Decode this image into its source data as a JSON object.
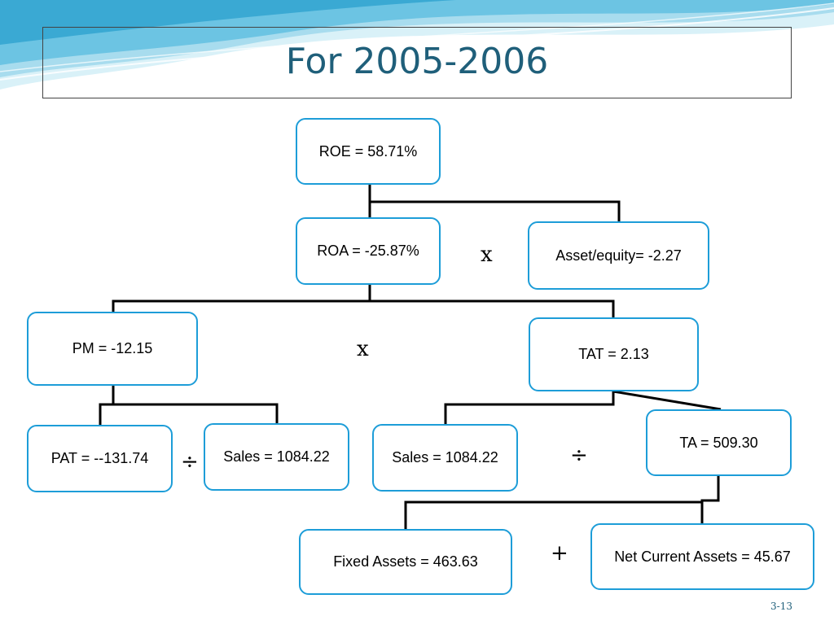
{
  "slide": {
    "title": "For 2005-2006",
    "page_number": "3-13"
  },
  "nodes": {
    "roe": "ROE = 58.71%",
    "roa": "ROA = -25.87%",
    "asset_equity": "Asset/equity= -2.27",
    "pm": "PM =  -12.15",
    "tat": "TAT =  2.13",
    "pat": "PAT = --131.74",
    "sales_left": "Sales = 1084.22",
    "sales_right": "Sales = 1084.22",
    "ta": "TA = 509.30",
    "fixed_assets": "Fixed Assets =  463.63",
    "net_current_assets": "Net Current Assets = 45.67"
  },
  "operators": {
    "roa_times_asset_equity": "x",
    "pm_times_tat": "x",
    "pat_div_sales": "÷",
    "sales_div_ta": "÷",
    "fixed_plus_net_current": "+"
  },
  "colors": {
    "box_border": "#1d9dd8",
    "title": "#1f5f7a",
    "wave_light": "#bfe6f2",
    "wave_mid": "#6cc4e3"
  }
}
